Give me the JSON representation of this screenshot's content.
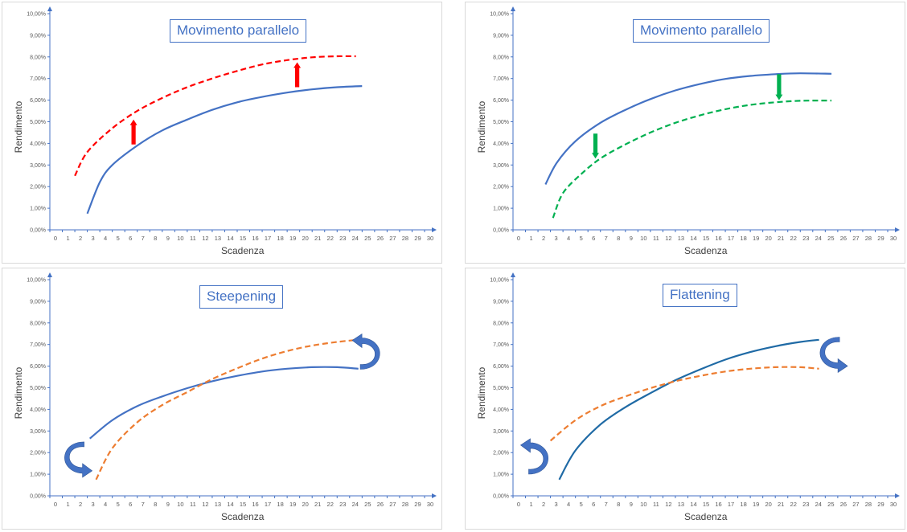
{
  "axis_color": "#4472c4",
  "chart_data": [
    {
      "type": "line",
      "title": "Movimento parallelo",
      "xlabel": "Scadenza",
      "ylabel": "Rendimento",
      "xlim": [
        0,
        30
      ],
      "ylim": [
        0,
        10
      ],
      "x_ticks": [
        "0",
        "1",
        "2",
        "3",
        "4",
        "5",
        "6",
        "7",
        "8",
        "9",
        "10",
        "11",
        "12",
        "13",
        "14",
        "15",
        "16",
        "17",
        "18",
        "19",
        "20",
        "21",
        "22",
        "23",
        "24",
        "25",
        "26",
        "27",
        "28",
        "29",
        "30"
      ],
      "y_ticks": [
        "0,00%",
        "1,00%",
        "2,00%",
        "3,00%",
        "4,00%",
        "5,00%",
        "6,00%",
        "7,00%",
        "8,00%",
        "9,00%",
        "10,00%"
      ],
      "series": [
        {
          "color": "#4472c4",
          "style": "solid",
          "points": [
            [
              3,
              0.75
            ],
            [
              4,
              2.2
            ],
            [
              5,
              3.0
            ],
            [
              7,
              3.9
            ],
            [
              9,
              4.6
            ],
            [
              11,
              5.1
            ],
            [
              13,
              5.55
            ],
            [
              15,
              5.9
            ],
            [
              17,
              6.15
            ],
            [
              19,
              6.35
            ],
            [
              21,
              6.5
            ],
            [
              23,
              6.6
            ],
            [
              25,
              6.65
            ]
          ]
        },
        {
          "color": "#ff0000",
          "style": "dashed",
          "points": [
            [
              2,
              2.5
            ],
            [
              3,
              3.6
            ],
            [
              5,
              4.7
            ],
            [
              7,
              5.5
            ],
            [
              9,
              6.1
            ],
            [
              11,
              6.6
            ],
            [
              13,
              7.0
            ],
            [
              15,
              7.35
            ],
            [
              17,
              7.65
            ],
            [
              19,
              7.85
            ],
            [
              21,
              7.98
            ],
            [
              23,
              8.03
            ],
            [
              24.5,
              8.03
            ]
          ]
        }
      ],
      "arrows": [
        {
          "kind": "straight",
          "color": "#ff0000",
          "x": 6.7,
          "from": 3.95,
          "to": 5.1
        },
        {
          "kind": "straight",
          "color": "#ff0000",
          "x": 19.8,
          "from": 6.6,
          "to": 7.75
        }
      ]
    },
    {
      "type": "line",
      "title": "Movimento parallelo",
      "xlabel": "Scadenza",
      "ylabel": "Rendimento",
      "xlim": [
        0,
        30
      ],
      "ylim": [
        0,
        10
      ],
      "x_ticks": [
        "0",
        "1",
        "2",
        "3",
        "4",
        "5",
        "6",
        "7",
        "8",
        "9",
        "10",
        "11",
        "12",
        "13",
        "14",
        "15",
        "16",
        "17",
        "18",
        "19",
        "20",
        "21",
        "22",
        "23",
        "24",
        "25",
        "26",
        "27",
        "28",
        "29",
        "30"
      ],
      "y_ticks": [
        "0,00%",
        "1,00%",
        "2,00%",
        "3,00%",
        "4,00%",
        "5,00%",
        "6,00%",
        "7,00%",
        "8,00%",
        "9,00%",
        "10,00%"
      ],
      "series": [
        {
          "color": "#4472c4",
          "style": "solid",
          "points": [
            [
              2.6,
              2.1
            ],
            [
              3.5,
              3.1
            ],
            [
              5,
              4.1
            ],
            [
              7,
              4.95
            ],
            [
              9,
              5.55
            ],
            [
              11,
              6.05
            ],
            [
              13,
              6.45
            ],
            [
              15,
              6.75
            ],
            [
              17,
              6.98
            ],
            [
              19,
              7.12
            ],
            [
              21,
              7.2
            ],
            [
              23,
              7.24
            ],
            [
              25.5,
              7.22
            ]
          ]
        },
        {
          "color": "#00b050",
          "style": "dashed",
          "points": [
            [
              3.2,
              0.55
            ],
            [
              4,
              1.7
            ],
            [
              5.5,
              2.6
            ],
            [
              7,
              3.3
            ],
            [
              9,
              3.95
            ],
            [
              11,
              4.5
            ],
            [
              13,
              4.95
            ],
            [
              15,
              5.3
            ],
            [
              17,
              5.58
            ],
            [
              19,
              5.78
            ],
            [
              21,
              5.9
            ],
            [
              23,
              5.97
            ],
            [
              25.5,
              5.98
            ]
          ]
        }
      ],
      "arrows": [
        {
          "kind": "straight",
          "color": "#00b050",
          "x": 6.6,
          "from": 4.45,
          "to": 3.3
        },
        {
          "kind": "straight",
          "color": "#00b050",
          "x": 21.3,
          "from": 7.2,
          "to": 6.0
        }
      ]
    },
    {
      "type": "line",
      "title": "Steepening",
      "xlabel": "Scadenza",
      "ylabel": "Rendimento",
      "xlim": [
        0,
        30
      ],
      "ylim": [
        0,
        10
      ],
      "x_ticks": [
        "0",
        "1",
        "2",
        "3",
        "4",
        "5",
        "6",
        "7",
        "8",
        "9",
        "10",
        "11",
        "12",
        "13",
        "14",
        "15",
        "16",
        "17",
        "18",
        "19",
        "20",
        "21",
        "22",
        "23",
        "24",
        "25",
        "26",
        "27",
        "28",
        "29",
        "30"
      ],
      "y_ticks": [
        "0,00%",
        "1,00%",
        "2,00%",
        "3,00%",
        "4,00%",
        "5,00%",
        "6,00%",
        "7,00%",
        "8,00%",
        "9,00%",
        "10,00%"
      ],
      "series": [
        {
          "color": "#4472c4",
          "style": "solid",
          "points": [
            [
              3.2,
              2.65
            ],
            [
              5,
              3.5
            ],
            [
              7,
              4.15
            ],
            [
              9,
              4.6
            ],
            [
              11,
              4.98
            ],
            [
              13,
              5.3
            ],
            [
              15,
              5.55
            ],
            [
              17,
              5.75
            ],
            [
              19,
              5.88
            ],
            [
              21,
              5.95
            ],
            [
              23,
              5.95
            ],
            [
              24.7,
              5.88
            ]
          ]
        },
        {
          "color": "#ed7d31",
          "style": "dashed",
          "points": [
            [
              3.7,
              0.75
            ],
            [
              5,
              2.2
            ],
            [
              7,
              3.4
            ],
            [
              9,
              4.2
            ],
            [
              11,
              4.8
            ],
            [
              13,
              5.4
            ],
            [
              15,
              5.9
            ],
            [
              17,
              6.35
            ],
            [
              19,
              6.7
            ],
            [
              21,
              6.95
            ],
            [
              23,
              7.12
            ],
            [
              24.7,
              7.22
            ]
          ]
        }
      ],
      "arrows": [
        {
          "kind": "curved",
          "color": "#4472c4",
          "x": 2.1,
          "y": 1.75,
          "dir": "down"
        },
        {
          "kind": "curved",
          "color": "#4472c4",
          "x": 25.5,
          "y": 6.6,
          "dir": "up"
        }
      ]
    },
    {
      "type": "line",
      "title": "Flattening",
      "xlabel": "Scadenza",
      "ylabel": "Rendimento",
      "xlim": [
        0,
        30
      ],
      "ylim": [
        0,
        10
      ],
      "x_ticks": [
        "0",
        "1",
        "2",
        "3",
        "4",
        "5",
        "6",
        "7",
        "8",
        "9",
        "10",
        "11",
        "12",
        "13",
        "14",
        "15",
        "16",
        "17",
        "18",
        "19",
        "20",
        "21",
        "22",
        "23",
        "24",
        "25",
        "26",
        "27",
        "28",
        "29",
        "30"
      ],
      "y_ticks": [
        "0,00%",
        "1,00%",
        "2,00%",
        "3,00%",
        "4,00%",
        "5,00%",
        "6,00%",
        "7,00%",
        "8,00%",
        "9,00%",
        "10,00%"
      ],
      "series": [
        {
          "color": "#1f6aa5",
          "style": "solid",
          "points": [
            [
              3.7,
              0.75
            ],
            [
              5,
              2.1
            ],
            [
              7,
              3.3
            ],
            [
              9,
              4.1
            ],
            [
              11,
              4.75
            ],
            [
              13,
              5.35
            ],
            [
              15,
              5.85
            ],
            [
              17,
              6.3
            ],
            [
              19,
              6.65
            ],
            [
              21,
              6.92
            ],
            [
              23,
              7.12
            ],
            [
              24.5,
              7.22
            ]
          ]
        },
        {
          "color": "#ed7d31",
          "style": "dashed",
          "points": [
            [
              3,
              2.55
            ],
            [
              5,
              3.5
            ],
            [
              7,
              4.15
            ],
            [
              9,
              4.6
            ],
            [
              11,
              4.98
            ],
            [
              13,
              5.3
            ],
            [
              15,
              5.55
            ],
            [
              17,
              5.75
            ],
            [
              19,
              5.88
            ],
            [
              21,
              5.95
            ],
            [
              23,
              5.95
            ],
            [
              24.5,
              5.88
            ]
          ]
        }
      ],
      "arrows": [
        {
          "kind": "curved",
          "color": "#4472c4",
          "x": 1.9,
          "y": 1.75,
          "dir": "up"
        },
        {
          "kind": "curved",
          "color": "#4472c4",
          "x": 25.5,
          "y": 6.6,
          "dir": "down"
        }
      ]
    }
  ]
}
